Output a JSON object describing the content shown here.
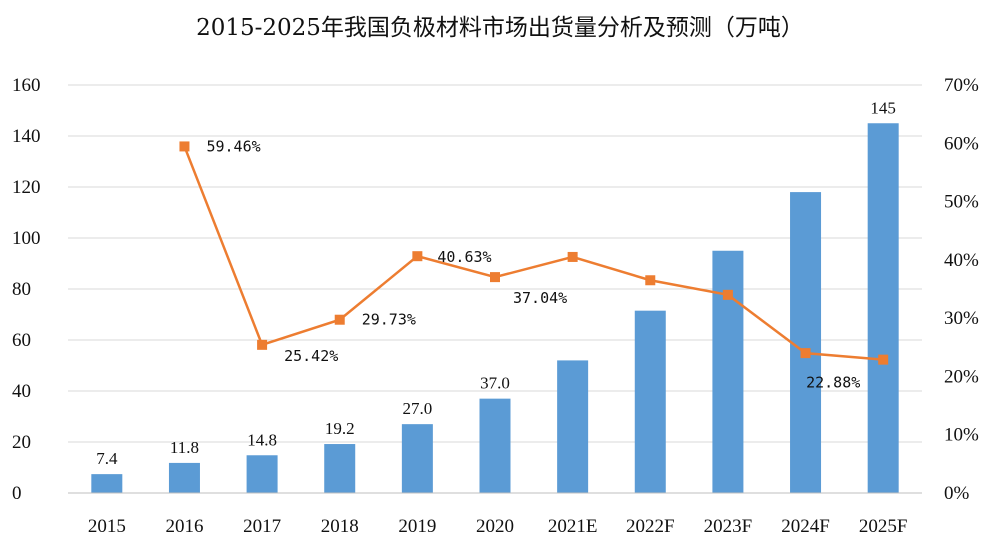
{
  "chart_data": {
    "type": "bar",
    "title": "2015-2025年我国负极材料市场出货量分析及预测（万吨）",
    "categories": [
      "2015",
      "2016",
      "2017",
      "2018",
      "2019",
      "2020",
      "2021E",
      "2022F",
      "2023F",
      "2024F",
      "2025F"
    ],
    "series": [
      {
        "kind": "bar",
        "axis": "left",
        "color": "#5b9bd5",
        "values": [
          7.4,
          11.8,
          14.8,
          19.2,
          27.0,
          37.0,
          52.0,
          71.5,
          95.0,
          118.0,
          145.0
        ],
        "data_labels": [
          "7.4",
          "11.8",
          "14.8",
          "19.2",
          "27.0",
          "37.0",
          "",
          "",
          "",
          "",
          "145"
        ]
      },
      {
        "kind": "line",
        "axis": "right",
        "color": "#ed7d31",
        "marker": "square",
        "values": [
          null,
          59.46,
          25.42,
          29.73,
          40.63,
          37.04,
          40.5,
          36.5,
          34.0,
          24.0,
          22.88
        ],
        "data_labels": [
          "",
          "59.46%",
          "25.42%",
          "29.73%",
          "40.63%",
          "37.04%",
          "",
          "",
          "",
          "",
          "22.88%"
        ]
      }
    ],
    "y_left": {
      "ylim": [
        0,
        160
      ],
      "ticks": [
        "0",
        "20",
        "40",
        "60",
        "80",
        "100",
        "120",
        "140",
        "160"
      ]
    },
    "y_right": {
      "ylim": [
        0,
        70
      ],
      "ticks": [
        "0%",
        "10%",
        "20%",
        "30%",
        "40%",
        "50%",
        "60%",
        "70%"
      ]
    },
    "grid": "horizontal",
    "legend": "none"
  }
}
